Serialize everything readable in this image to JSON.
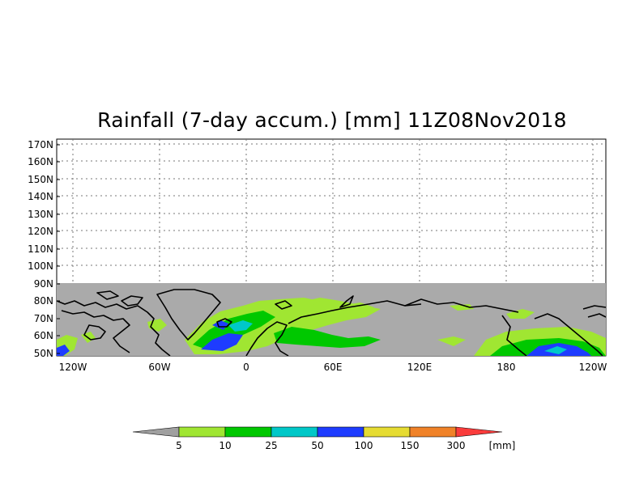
{
  "title": "Rainfall (7-day accum.) [mm] 11Z08Nov2018",
  "y_axis": {
    "labels": [
      "50N",
      "60N",
      "70N",
      "80N",
      "90N",
      "100N",
      "110N",
      "120N",
      "130N",
      "140N",
      "150N",
      "160N",
      "170N"
    ]
  },
  "x_axis": {
    "labels": [
      "120W",
      "60W",
      "0",
      "60E",
      "120E",
      "180",
      "120W"
    ]
  },
  "colorbar": {
    "unit": "[mm]",
    "thresholds": [
      "5",
      "10",
      "25",
      "50",
      "100",
      "150",
      "300"
    ],
    "colors": [
      "#a0a0a0",
      "#a0e632",
      "#00c800",
      "#00c8c8",
      "#1e3cff",
      "#e6dc32",
      "#f08228",
      "#fa3c3c"
    ]
  },
  "colors": {
    "no_data": "#aaaaaa",
    "coastline": "#000000",
    "background": "#ffffff"
  }
}
